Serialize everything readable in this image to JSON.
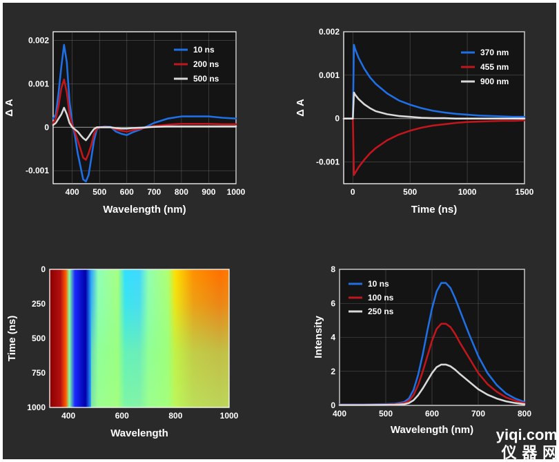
{
  "watermark": {
    "line1": "yiqi.com",
    "line2": "仪 器 网"
  },
  "chart_data": [
    {
      "id": "transient-absorption-spectra",
      "type": "line",
      "title": "",
      "xlabel": "Wavelength (nm)",
      "ylabel": "Δ A",
      "xlim": [
        330,
        1000
      ],
      "ylim": [
        -0.0013,
        0.0022
      ],
      "xticks": [
        "400",
        "500",
        "600",
        "700",
        "800",
        "900",
        "1000"
      ],
      "yticks": [
        "0.002",
        "0.001",
        "0",
        "-0.001"
      ],
      "grid": true,
      "legend_position": "top-right",
      "series": [
        {
          "name": "10 ns",
          "color": "#1f6fe5",
          "x": [
            330,
            340,
            350,
            360,
            370,
            380,
            390,
            400,
            410,
            420,
            430,
            440,
            450,
            460,
            470,
            480,
            490,
            500,
            520,
            540,
            560,
            580,
            600,
            620,
            650,
            700,
            750,
            800,
            850,
            900,
            950,
            1000
          ],
          "values": [
            0.0002,
            0.0003,
            0.0008,
            0.0014,
            0.0019,
            0.0015,
            0.0006,
            0.0001,
            -0.0002,
            -0.0006,
            -0.0009,
            -0.0012,
            -0.00125,
            -0.0011,
            -0.0007,
            -0.0003,
            -5e-05,
            0.0,
            2e-05,
            1e-05,
            -0.0001,
            -0.00015,
            -0.00018,
            -0.00012,
            -5e-05,
            0.0001,
            0.0002,
            0.00025,
            0.00025,
            0.00025,
            0.00022,
            0.0002
          ]
        },
        {
          "name": "200 ns",
          "color": "#c0161c",
          "x": [
            330,
            340,
            350,
            360,
            370,
            380,
            390,
            400,
            410,
            420,
            430,
            440,
            450,
            460,
            470,
            480,
            490,
            500,
            520,
            540,
            560,
            580,
            600,
            620,
            650,
            700,
            750,
            800,
            850,
            900,
            950,
            1000
          ],
          "values": [
            0.0001,
            0.0002,
            0.0005,
            0.0009,
            0.0011,
            0.0008,
            0.0003,
            5e-05,
            -0.0001,
            -0.0003,
            -0.0005,
            -0.0007,
            -0.00075,
            -0.0006,
            -0.0004,
            -0.00015,
            -3e-05,
            0.0,
            1e-05,
            0.0,
            -5e-05,
            -8e-05,
            -0.0001,
            -7e-05,
            -3e-05,
            3e-05,
            6e-05,
            8e-05,
            8e-05,
            8e-05,
            7e-05,
            7e-05
          ]
        },
        {
          "name": "500 ns",
          "color": "#d9d9d9",
          "x": [
            330,
            340,
            350,
            360,
            370,
            380,
            390,
            400,
            410,
            420,
            430,
            440,
            450,
            460,
            470,
            480,
            490,
            500,
            520,
            540,
            560,
            580,
            600,
            620,
            650,
            700,
            750,
            800,
            850,
            900,
            950,
            1000
          ],
          "values": [
            5e-05,
            0.0001,
            0.0002,
            0.0003,
            0.00045,
            0.0003,
            0.0001,
            0.0,
            -5e-05,
            -0.0001,
            -0.00018,
            -0.00025,
            -0.0003,
            -0.00022,
            -0.00012,
            -4e-05,
            0.0,
            0.0,
            0.0,
            0.0,
            -2e-05,
            -3e-05,
            -3e-05,
            -2e-05,
            -1e-05,
            1e-05,
            2e-05,
            2e-05,
            2e-05,
            2e-05,
            2e-05,
            2e-05
          ]
        }
      ]
    },
    {
      "id": "transient-absorption-kinetics",
      "type": "line",
      "title": "",
      "xlabel": "Time (ns)",
      "ylabel": "Δ A",
      "xlim": [
        -80,
        1500
      ],
      "ylim": [
        -0.0015,
        0.002
      ],
      "xticks": [
        "0",
        "500",
        "1000",
        "1500"
      ],
      "yticks": [
        "0.002",
        "0.001",
        "0",
        "-0.001"
      ],
      "grid": true,
      "legend_position": "top-right",
      "series": [
        {
          "name": "370 nm",
          "color": "#1f6fe5",
          "x": [
            -80,
            -40,
            0,
            10,
            20,
            50,
            100,
            150,
            200,
            300,
            400,
            500,
            600,
            700,
            800,
            900,
            1000,
            1100,
            1200,
            1300,
            1400,
            1500
          ],
          "values": [
            0,
            0,
            0,
            0.0017,
            0.0016,
            0.0014,
            0.00115,
            0.00095,
            0.0008,
            0.00058,
            0.00042,
            0.00032,
            0.00024,
            0.00018,
            0.00014,
            0.00011,
            9e-05,
            7e-05,
            6e-05,
            5e-05,
            4e-05,
            4e-05
          ]
        },
        {
          "name": "455 nm",
          "color": "#c0161c",
          "x": [
            -80,
            -40,
            0,
            10,
            20,
            50,
            100,
            150,
            200,
            300,
            400,
            500,
            600,
            700,
            800,
            900,
            1000,
            1100,
            1200,
            1300,
            1400,
            1500
          ],
          "values": [
            0,
            0,
            0,
            -0.0013,
            -0.00125,
            -0.00112,
            -0.00095,
            -0.0008,
            -0.00068,
            -0.0005,
            -0.00037,
            -0.00028,
            -0.00021,
            -0.00016,
            -0.00013,
            -0.0001,
            -8e-05,
            -7e-05,
            -6e-05,
            -5e-05,
            -5e-05,
            -4e-05
          ]
        },
        {
          "name": "900 nm",
          "color": "#d9d9d9",
          "x": [
            -80,
            -40,
            0,
            10,
            20,
            50,
            100,
            150,
            200,
            300,
            400,
            500,
            600,
            700,
            800,
            900,
            1000,
            1100,
            1200,
            1300,
            1400,
            1500
          ],
          "values": [
            0,
            0,
            0,
            0.0006,
            0.00055,
            0.00045,
            0.00033,
            0.00024,
            0.00017,
            0.0001,
            6e-05,
            4e-05,
            2e-05,
            1e-05,
            1e-05,
            0,
            0,
            0,
            0,
            0,
            0,
            0
          ]
        }
      ]
    },
    {
      "id": "time-wavelength-map",
      "type": "heatmap",
      "title": "",
      "xlabel": "Wavelength",
      "ylabel": "Time (ns)",
      "xlim": [
        330,
        1000
      ],
      "ylim": [
        1000,
        0
      ],
      "xticks": [
        "400",
        "600",
        "800",
        "1000"
      ],
      "yticks": [
        "0",
        "250",
        "500",
        "750",
        "1000"
      ],
      "colormap": "jet"
    },
    {
      "id": "emission-spectra",
      "type": "line",
      "title": "",
      "xlabel": "Wavelength (nm)",
      "ylabel": "Intensity",
      "xlim": [
        400,
        800
      ],
      "ylim": [
        0,
        8
      ],
      "xticks": [
        "400",
        "500",
        "600",
        "700",
        "800"
      ],
      "yticks": [
        "8",
        "6",
        "4",
        "2",
        "0"
      ],
      "grid": true,
      "legend_position": "top-left",
      "series": [
        {
          "name": "10 ns",
          "color": "#1f6fe5",
          "x": [
            400,
            450,
            500,
            520,
            540,
            550,
            560,
            570,
            580,
            590,
            600,
            610,
            620,
            630,
            640,
            650,
            660,
            680,
            700,
            720,
            740,
            760,
            780,
            800
          ],
          "values": [
            0.05,
            0.05,
            0.08,
            0.1,
            0.2,
            0.4,
            0.9,
            1.8,
            3.0,
            4.4,
            5.7,
            6.7,
            7.2,
            7.2,
            6.9,
            6.3,
            5.6,
            4.2,
            2.9,
            1.9,
            1.2,
            0.7,
            0.4,
            0.2
          ]
        },
        {
          "name": "100 ns",
          "color": "#c0161c",
          "x": [
            400,
            450,
            500,
            520,
            540,
            550,
            560,
            570,
            580,
            590,
            600,
            610,
            620,
            630,
            640,
            650,
            660,
            680,
            700,
            720,
            740,
            760,
            780,
            800
          ],
          "values": [
            0.03,
            0.03,
            0.05,
            0.07,
            0.13,
            0.27,
            0.6,
            1.2,
            2.0,
            2.9,
            3.8,
            4.5,
            4.8,
            4.8,
            4.6,
            4.2,
            3.7,
            2.8,
            1.9,
            1.25,
            0.8,
            0.47,
            0.27,
            0.13
          ]
        },
        {
          "name": "250 ns",
          "color": "#d9d9d9",
          "x": [
            400,
            450,
            500,
            520,
            540,
            550,
            560,
            570,
            580,
            590,
            600,
            610,
            620,
            630,
            640,
            650,
            660,
            680,
            700,
            720,
            740,
            760,
            780,
            800
          ],
          "values": [
            0.02,
            0.02,
            0.03,
            0.04,
            0.07,
            0.14,
            0.3,
            0.6,
            1.0,
            1.45,
            1.9,
            2.25,
            2.4,
            2.4,
            2.3,
            2.1,
            1.85,
            1.4,
            0.95,
            0.63,
            0.4,
            0.24,
            0.14,
            0.07
          ]
        }
      ]
    }
  ]
}
